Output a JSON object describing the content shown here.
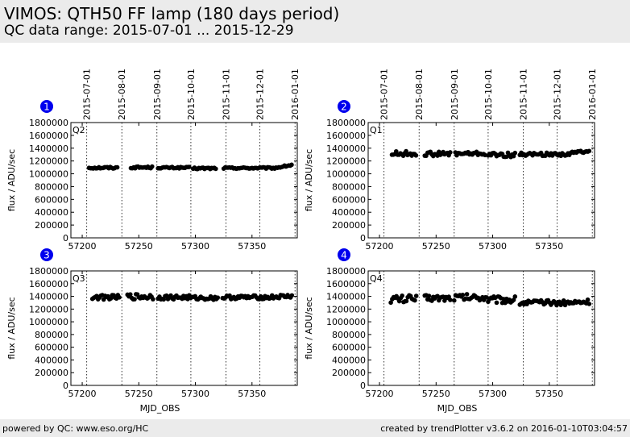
{
  "header": {
    "title": "VIMOS: QTH50 FF lamp (180 days period)",
    "subtitle": "QC data range: 2015-07-01 ... 2015-12-29"
  },
  "footer": {
    "left": "powered by QC: www.eso.org/HC",
    "right": "created by trendPlotter v3.6.2 on 2016-01-10T03:04:57"
  },
  "colors": {
    "badge": "#0000ee",
    "points": "#000000",
    "header_bg": "#ebebeb"
  },
  "chart_data": [
    {
      "type": "scatter",
      "badge": "1",
      "label": "Q2",
      "xlabel": "",
      "ylabel": "flux / ADU/sec",
      "xlim": [
        57190,
        57390
      ],
      "ylim": [
        0,
        1800000
      ],
      "xticks": [
        57200,
        57250,
        57300,
        57350
      ],
      "yticks": [
        0,
        200000,
        400000,
        600000,
        800000,
        1000000,
        1200000,
        1400000,
        1600000,
        1800000
      ],
      "date_lines": [
        57204,
        57235,
        57266,
        57296,
        57327,
        57357,
        57388
      ],
      "date_labels": [
        "2015-07-01",
        "2015-08-01",
        "2015-09-01",
        "2015-10-01",
        "2015-11-01",
        "2015-12-01",
        "2016-01-01"
      ],
      "segments": [
        {
          "x0": 57206,
          "x1": 57232,
          "base": 1095000,
          "amp": 15000
        },
        {
          "x0": 57243,
          "x1": 57262,
          "base": 1100000,
          "amp": 15000
        },
        {
          "x0": 57267,
          "x1": 57295,
          "base": 1095000,
          "amp": 12000
        },
        {
          "x0": 57298,
          "x1": 57318,
          "base": 1085000,
          "amp": 15000
        },
        {
          "x0": 57325,
          "x1": 57386,
          "base": 1090000,
          "amp": 12000,
          "rise_to": 1140000,
          "rise_from": 57370
        }
      ]
    },
    {
      "type": "scatter",
      "badge": "2",
      "label": "Q1",
      "xlabel": "",
      "ylabel": "flux / ADU/sec",
      "xlim": [
        57190,
        57390
      ],
      "ylim": [
        0,
        1800000
      ],
      "xticks": [
        57200,
        57250,
        57300,
        57350
      ],
      "yticks": [
        0,
        200000,
        400000,
        600000,
        800000,
        1000000,
        1200000,
        1400000,
        1600000,
        1800000
      ],
      "date_lines": [
        57204,
        57235,
        57266,
        57296,
        57327,
        57357,
        57388
      ],
      "date_labels": [
        "2015-07-01",
        "2015-08-01",
        "2015-09-01",
        "2015-10-01",
        "2015-11-01",
        "2015-12-01",
        "2016-01-01"
      ],
      "segments": [
        {
          "x0": 57211,
          "x1": 57233,
          "base": 1315000,
          "amp": 40000
        },
        {
          "x0": 57240,
          "x1": 57263,
          "base": 1310000,
          "amp": 35000
        },
        {
          "x0": 57267,
          "x1": 57294,
          "base": 1315000,
          "amp": 30000
        },
        {
          "x0": 57296,
          "x1": 57320,
          "base": 1295000,
          "amp": 35000
        },
        {
          "x0": 57324,
          "x1": 57386,
          "base": 1305000,
          "amp": 25000,
          "rise_to": 1370000,
          "rise_from": 57365
        }
      ]
    },
    {
      "type": "scatter",
      "badge": "3",
      "label": "Q3",
      "xlabel": "MJD_OBS",
      "ylabel": "flux / ADU/sec",
      "xlim": [
        57190,
        57390
      ],
      "ylim": [
        0,
        1800000
      ],
      "xticks": [
        57200,
        57250,
        57300,
        57350
      ],
      "yticks": [
        0,
        200000,
        400000,
        600000,
        800000,
        1000000,
        1200000,
        1400000,
        1600000,
        1800000
      ],
      "date_lines": [
        57204,
        57235,
        57266,
        57296,
        57327,
        57357,
        57388
      ],
      "segments": [
        {
          "x0": 57209,
          "x1": 57233,
          "base": 1385000,
          "amp": 35000
        },
        {
          "x0": 57240,
          "x1": 57263,
          "base": 1395000,
          "amp": 45000
        },
        {
          "x0": 57267,
          "x1": 57295,
          "base": 1385000,
          "amp": 35000
        },
        {
          "x0": 57296,
          "x1": 57320,
          "base": 1375000,
          "amp": 30000
        },
        {
          "x0": 57324,
          "x1": 57386,
          "base": 1385000,
          "amp": 30000,
          "rise_to": 1405000,
          "rise_from": 57365
        }
      ]
    },
    {
      "type": "scatter",
      "badge": "4",
      "label": "Q4",
      "xlabel": "MJD_OBS",
      "ylabel": "flux / ADU/sec",
      "xlim": [
        57190,
        57390
      ],
      "ylim": [
        0,
        1800000
      ],
      "xticks": [
        57200,
        57250,
        57300,
        57350
      ],
      "yticks": [
        0,
        200000,
        400000,
        600000,
        800000,
        1000000,
        1200000,
        1400000,
        1600000,
        1800000
      ],
      "date_lines": [
        57204,
        57235,
        57266,
        57296,
        57327,
        57357,
        57388
      ],
      "segments": [
        {
          "x0": 57210,
          "x1": 57233,
          "base": 1360000,
          "amp": 60000
        },
        {
          "x0": 57240,
          "x1": 57263,
          "base": 1375000,
          "amp": 50000
        },
        {
          "x0": 57266,
          "x1": 57295,
          "base": 1385000,
          "amp": 55000
        },
        {
          "x0": 57296,
          "x1": 57320,
          "base": 1350000,
          "amp": 55000
        },
        {
          "x0": 57324,
          "x1": 57386,
          "base": 1300000,
          "amp": 40000,
          "rise_to": 1320000,
          "rise_from": 57370
        }
      ]
    }
  ]
}
